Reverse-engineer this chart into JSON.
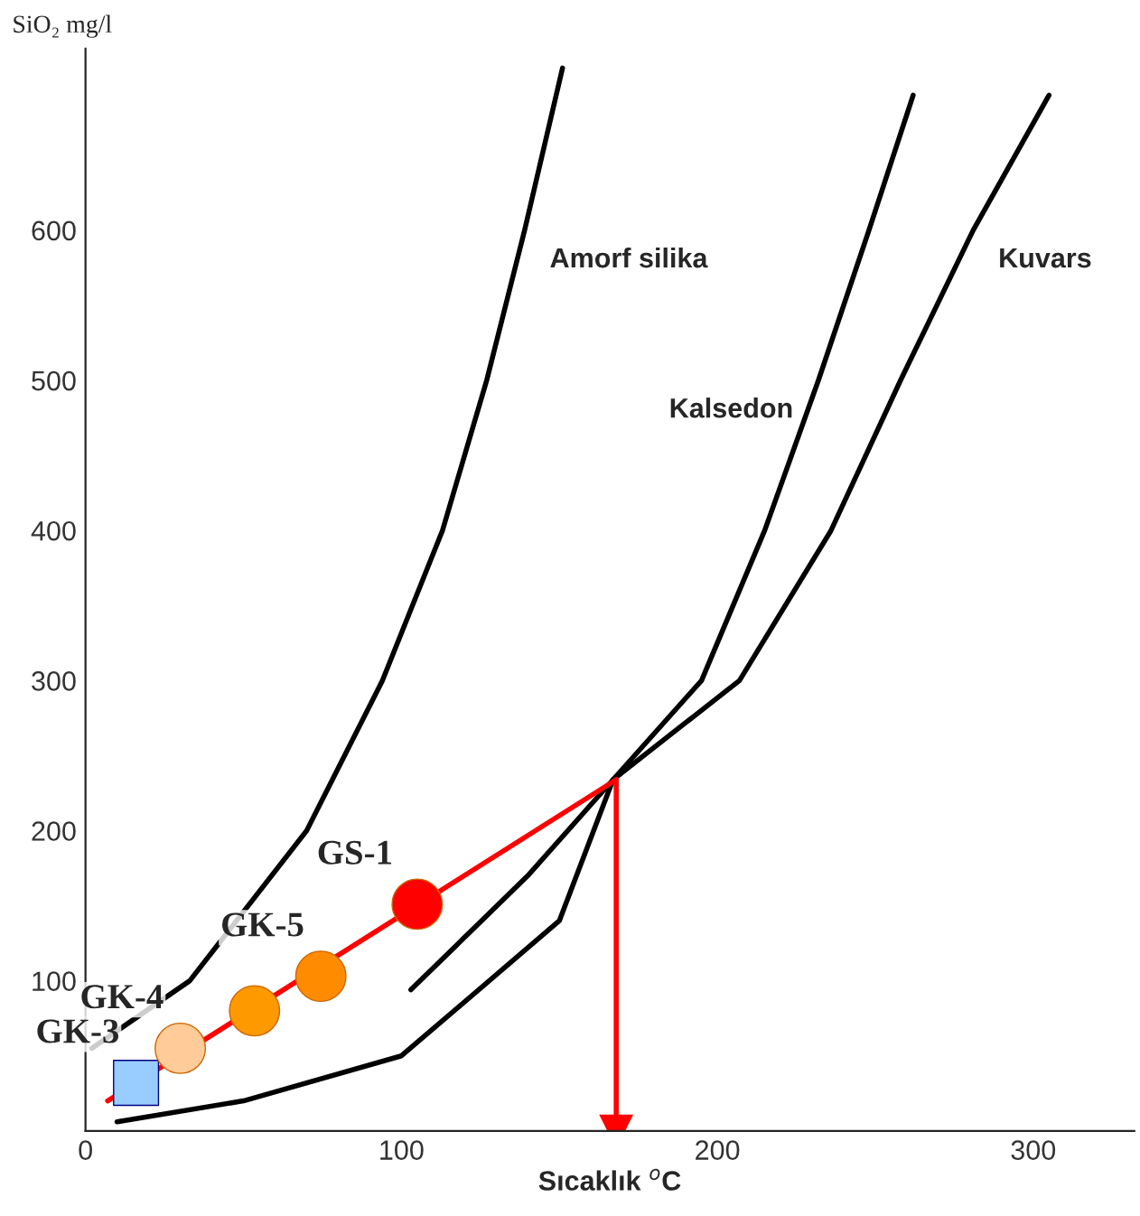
{
  "chart_data": {
    "type": "line",
    "ylabel": "SiO₂ mg/l",
    "xlabel": "Sıcaklık $^{o}$C",
    "xlim": [
      0,
      332
    ],
    "ylim": [
      0,
      721
    ],
    "xticks": [
      0,
      100,
      200,
      300
    ],
    "yticks": [
      100,
      200,
      300,
      400,
      500,
      600
    ],
    "grid": false,
    "legend": false,
    "series": [
      {
        "name": "Amorf silika",
        "color": "#000000",
        "x": [
          2,
          33,
          70,
          94,
          113,
          127,
          139,
          151
        ],
        "values": [
          55,
          100,
          200,
          300,
          400,
          500,
          600,
          708
        ]
      },
      {
        "name": "Kalsedon",
        "color": "#000000",
        "x": [
          103,
          140,
          167,
          195,
          215,
          232,
          248,
          262
        ],
        "values": [
          94,
          170,
          234,
          300,
          400,
          500,
          600,
          690
        ]
      },
      {
        "name": "Kuvars",
        "color": "#000000",
        "x": [
          10,
          50,
          100,
          150,
          167,
          207,
          236,
          258,
          281,
          305
        ],
        "values": [
          6,
          20,
          50,
          140,
          234,
          300,
          400,
          500,
          600,
          690
        ]
      },
      {
        "color": "#ff0000",
        "x": [
          7,
          168
        ],
        "values": [
          20,
          234
        ]
      },
      {
        "color": "#ff0000",
        "x": [
          168,
          168
        ],
        "values": [
          234,
          0
        ],
        "marker": "triangle"
      },
      {
        "type": "scatter",
        "marker": "square",
        "x": [
          16
        ],
        "values": [
          32
        ],
        "colors": [
          "#99ccff"
        ]
      },
      {
        "type": "scatter",
        "marker": "circle",
        "x": [
          30,
          53.5,
          74.5,
          105
        ],
        "values": [
          55,
          80,
          103,
          151
        ],
        "colors": [
          "#ffcc99",
          "#ff9900",
          "#ff8c00",
          "#ff0000"
        ]
      }
    ],
    "annotations": [
      {
        "text": "GK-3",
        "x": 16,
        "y": 32
      },
      {
        "text": "GK-4",
        "x": 30,
        "y": 55
      },
      {
        "text": "GK-5",
        "x": 74.5,
        "y": 103
      },
      {
        "text": "GS-1",
        "x": 105,
        "y": 151
      }
    ]
  }
}
